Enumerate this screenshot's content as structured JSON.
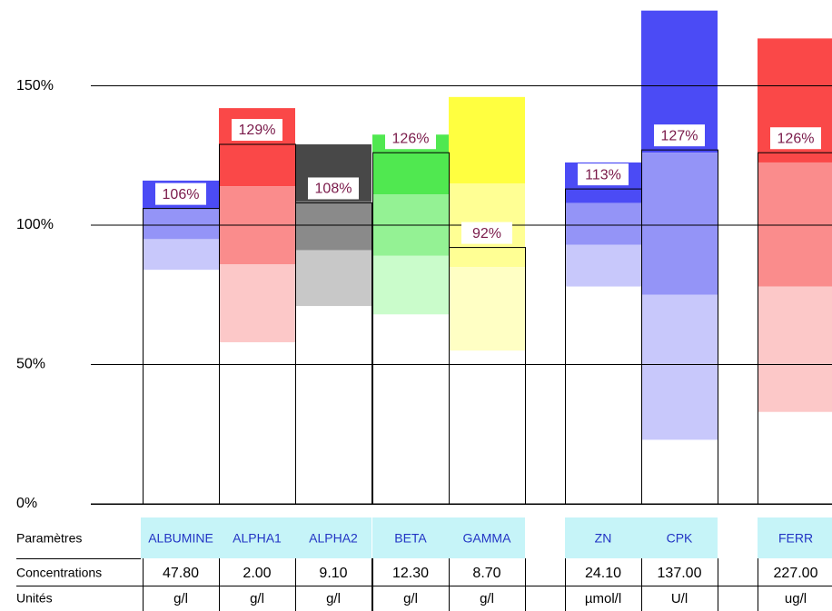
{
  "chart_data": {
    "type": "bar",
    "ylim": [
      0,
      180.8
    ],
    "yticks": [
      {
        "value": 0,
        "label": "0%"
      },
      {
        "value": 50,
        "label": "50%"
      },
      {
        "value": 100,
        "label": "100%"
      },
      {
        "value": 150,
        "label": "150%"
      }
    ],
    "grid": true,
    "categories": [
      "ALBUMINE",
      "ALPHA1",
      "ALPHA2",
      "BETA",
      "GAMMA",
      "ZN",
      "CPK",
      "FERR"
    ],
    "values": [
      106,
      129,
      108,
      126,
      92,
      113,
      127,
      126
    ],
    "value_labels": [
      "106%",
      "129%",
      "108%",
      "126%",
      "92%",
      "113%",
      "127%",
      "126%"
    ],
    "bands": [
      [
        116,
        106,
        95,
        84
      ],
      [
        142,
        114,
        86,
        58
      ],
      [
        129,
        108.5,
        91,
        71
      ],
      [
        132.5,
        111,
        89,
        68
      ],
      [
        146,
        115,
        85,
        55
      ],
      [
        122.5,
        108,
        93,
        78
      ],
      [
        177,
        126,
        75,
        23
      ],
      [
        167,
        122.5,
        78,
        33
      ]
    ],
    "band_colors": [
      [
        "#4b4bf5",
        "#9494f7",
        "#c8c8fb"
      ],
      [
        "#fa4848",
        "#fa8c8c",
        "#fcc8c8"
      ],
      [
        "#484848",
        "#8a8a8a",
        "#c8c8c8"
      ],
      [
        "#50e850",
        "#94f294",
        "#cafccb"
      ],
      [
        "#ffff40",
        "#ffff94",
        "#ffffc4"
      ],
      [
        "#4b4bf5",
        "#9494f7",
        "#c8c8fb"
      ],
      [
        "#4b4bf5",
        "#9494f7",
        "#c8c8fb"
      ],
      [
        "#fa4848",
        "#fa8c8c",
        "#fcc8c8"
      ]
    ],
    "table": {
      "row_labels": [
        "Paramètres",
        "Concentrations",
        "Unités"
      ],
      "concentrations": [
        "47.80",
        "2.00",
        "9.10",
        "12.30",
        "8.70",
        "24.10",
        "137.00",
        "227.00"
      ],
      "units": [
        "g/l",
        "g/l",
        "g/l",
        "g/l",
        "g/l",
        "µmol/l",
        "U/l",
        "ug/l"
      ]
    }
  }
}
